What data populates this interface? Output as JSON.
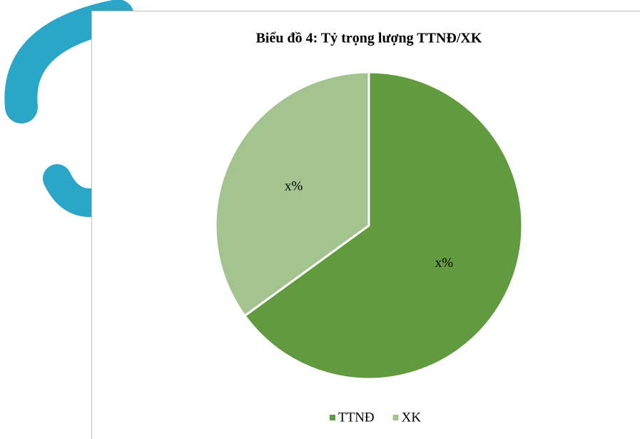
{
  "chart_data": {
    "type": "pie",
    "title": "Biểu đồ 4: Tỷ trọng lượng TTNĐ/XK",
    "categories": [
      "TTNĐ",
      "XK"
    ],
    "values": [
      65,
      35
    ],
    "value_labels": [
      "x%",
      "x%"
    ],
    "colors": [
      "#629b3f",
      "#a3c48f"
    ],
    "legend": "bottom"
  }
}
